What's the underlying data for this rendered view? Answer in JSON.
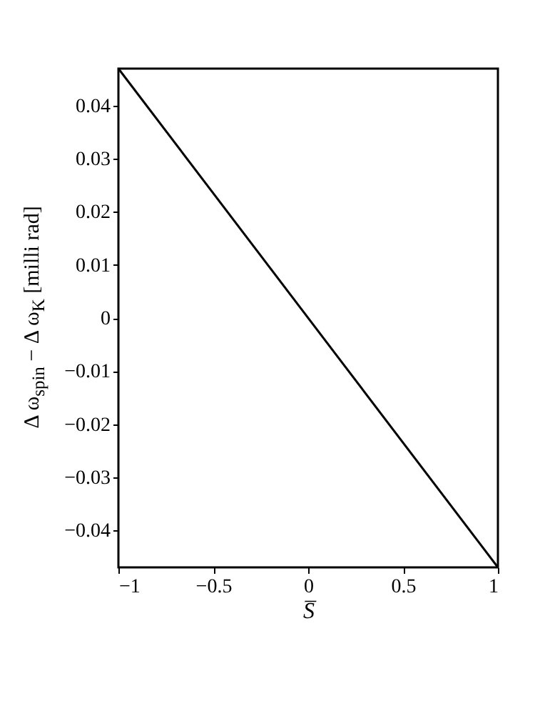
{
  "chart_data": {
    "type": "line",
    "xlabel": "S̅",
    "ylabel": "Δ ω$_{spin}$ − Δ ω$_{K}$ [milli rad]",
    "x": [
      -1,
      1
    ],
    "series": [
      {
        "color": "#000000",
        "values": [
          0.047,
          -0.047
        ]
      }
    ],
    "xlim": [
      -1,
      1
    ],
    "xticks": [
      -1,
      -0.5,
      0,
      0.5,
      1
    ],
    "ylim": [
      -0.047,
      0.047
    ],
    "yticks": [
      -0.04,
      -0.03,
      -0.02,
      -0.01,
      0,
      0.01,
      0.02,
      0.03,
      0.04
    ],
    "grid": false,
    "marker": "none",
    "line_style": "solid"
  }
}
